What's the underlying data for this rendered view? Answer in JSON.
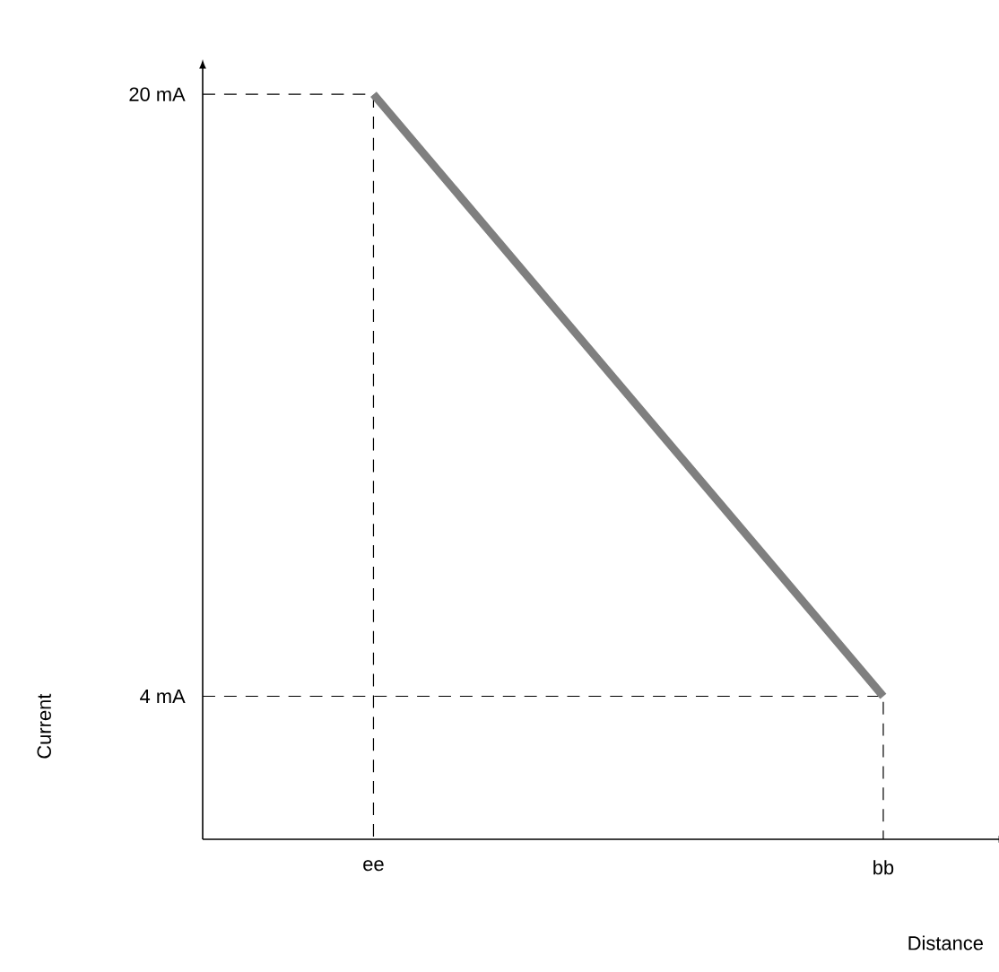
{
  "chart_data": {
    "type": "line",
    "xlabel": "Distance",
    "ylabel": "Current",
    "categories": [
      "ee",
      "bb"
    ],
    "series": [
      {
        "color": "#7f7f7f",
        "values": [
          20,
          4
        ]
      }
    ],
    "ylim": [
      0.2,
      20.6
    ],
    "yticks": [
      {
        "value": 4,
        "label": "4 mA"
      },
      {
        "value": 20,
        "label": "20 mA"
      }
    ],
    "ref_lines": [
      {
        "axis": "y",
        "value": 20,
        "line_style": "dashed"
      },
      {
        "axis": "y",
        "value": 4,
        "line_style": "dashed"
      }
    ],
    "marker": "none",
    "line_style": "solid",
    "grid": false
  }
}
